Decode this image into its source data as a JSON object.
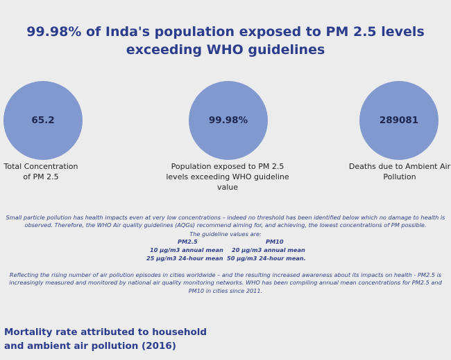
{
  "title": "99.98% of Inda's population exposed to PM 2.5 levels exceeding WHO guidelines",
  "kpis": [
    {
      "value": "65.2",
      "label": "Total Concentration of PM 2.5"
    },
    {
      "value": "99.98%",
      "label": "Population exposed to PM 2.5 levels exceeding WHO guideline value"
    },
    {
      "value": "289081",
      "label": "Deaths due to Ambient Air Pollution"
    }
  ],
  "notes": {
    "para1": "Small particle pollution has health impacts even at very low concentrations – indeed no threshold has been identified below which no damage to health is observed. Therefore, the WHO Air quality guidelines (AQGs) recommend aiming for, and achieving, the lowest concentrations of PM possible.",
    "guideline_heading": "The guideline values are:",
    "pm25_label": "PM2.5",
    "pm10_label": "PM10",
    "pm25_annual": "10 μg/m3 annual mean",
    "pm10_annual": "20 μg/m3 annual mean",
    "pm25_24h": "25 μg/m3 24-hour mean",
    "pm10_24h": "50 μg/m3 24-hour mean.",
    "para2": "Reflecting the rising number of air pollution episodes in cities worldwide – and the resulting increased awareness about its impacts on health - PM2.5 is increasingly measured and monitored by national air quality monitoring networks. WHO has been compiling annual mean concentrations for PM2.5 and PM10 in cities since 2011."
  },
  "section_title": "Mortality rate attributed to household and ambient air pollution (2016)",
  "colors": {
    "circle": "#8199cf",
    "heading": "#2b3c8c",
    "notes": "#2f3f88",
    "background": "#ececec"
  }
}
